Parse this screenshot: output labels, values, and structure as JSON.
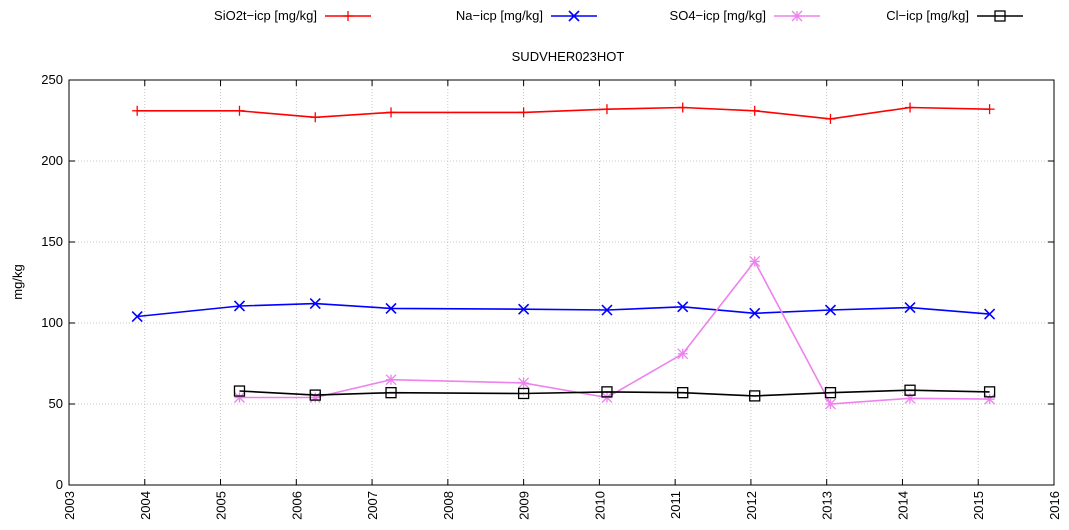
{
  "chart_data": {
    "type": "line",
    "title": "SUDVHER023HOT",
    "ylabel": "mg/kg",
    "xlabel": "",
    "xlim": [
      2003,
      2016
    ],
    "ylim": [
      0,
      250
    ],
    "x_ticks": [
      "2003",
      "2004",
      "2005",
      "2006",
      "2007",
      "2008",
      "2009",
      "2010",
      "2011",
      "2012",
      "2013",
      "2014",
      "2015",
      "2016"
    ],
    "y_ticks": [
      "0",
      "50",
      "100",
      "150",
      "200",
      "250"
    ],
    "grid": true,
    "legend_position": "top",
    "series": [
      {
        "name": "SiO2t−icp [mg/kg]",
        "color": "#ff0000",
        "marker": "plus",
        "x": [
          2003.9,
          2005.25,
          2006.25,
          2007.25,
          2009.0,
          2010.1,
          2011.1,
          2012.05,
          2013.05,
          2014.1,
          2015.15
        ],
        "y": [
          231,
          231,
          227,
          230,
          230,
          232,
          233,
          231,
          226,
          233,
          232
        ]
      },
      {
        "name": "Na−icp [mg/kg]",
        "color": "#0000ff",
        "marker": "x",
        "x": [
          2003.9,
          2005.25,
          2006.25,
          2007.25,
          2009.0,
          2010.1,
          2011.1,
          2012.05,
          2013.05,
          2014.1,
          2015.15
        ],
        "y": [
          104,
          110.5,
          112,
          109,
          108.5,
          108,
          110,
          106,
          108,
          109.5,
          105.5
        ]
      },
      {
        "name": "SO4−icp [mg/kg]",
        "color": "#ee82ee",
        "marker": "star",
        "x": [
          2005.25,
          2006.25,
          2007.25,
          2009.0,
          2010.1,
          2011.1,
          2012.05,
          2013.05,
          2014.1,
          2015.15
        ],
        "y": [
          54,
          54,
          65,
          63,
          54,
          81,
          138,
          50,
          53.5,
          53
        ]
      },
      {
        "name": "Cl−icp [mg/kg]",
        "color": "#000000",
        "marker": "square",
        "x": [
          2005.25,
          2006.25,
          2007.25,
          2009.0,
          2010.1,
          2011.1,
          2012.05,
          2013.05,
          2014.1,
          2015.15
        ],
        "y": [
          58,
          55.5,
          57,
          56.5,
          57.5,
          57,
          55,
          57,
          58.5,
          57.5
        ]
      }
    ]
  }
}
